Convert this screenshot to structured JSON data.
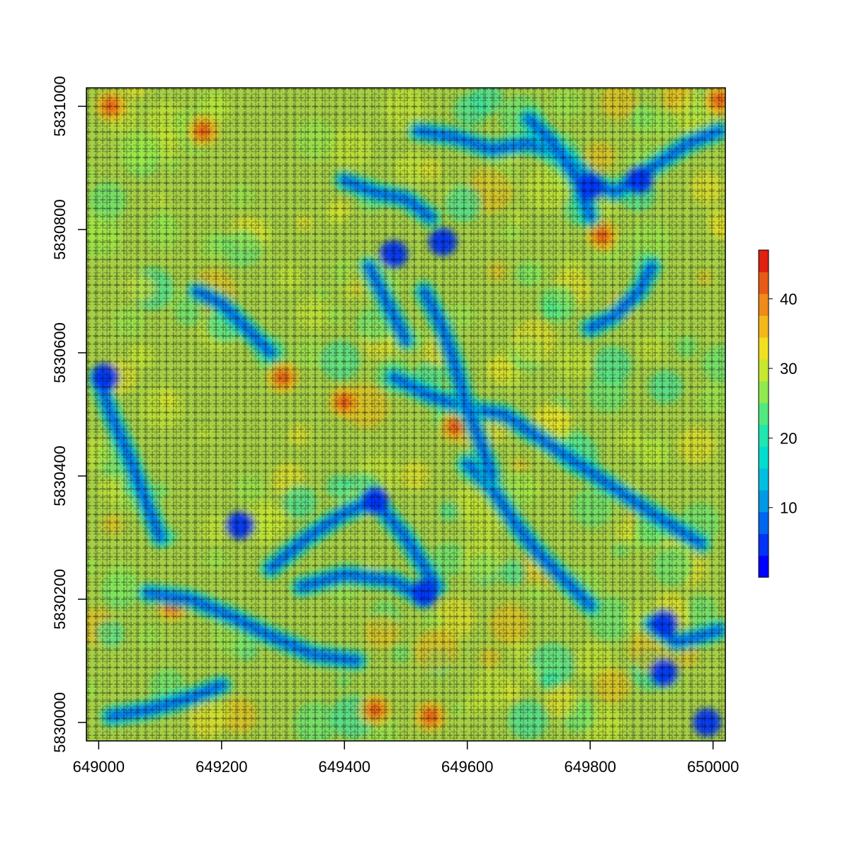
{
  "chart_data": {
    "type": "heatmap",
    "title": "",
    "xlabel": "",
    "ylabel": "",
    "xlim": [
      648980,
      650020
    ],
    "ylim": [
      5829970,
      5831030
    ],
    "x_ticks": [
      649000,
      649200,
      649400,
      649600,
      649800,
      650000
    ],
    "x_tick_labels": [
      "649000",
      "649200",
      "649400",
      "649600",
      "649800",
      "650000"
    ],
    "y_ticks": [
      5830000,
      5830200,
      5830400,
      5830600,
      5830800,
      5831000
    ],
    "y_tick_labels": [
      "5830000",
      "5830200",
      "5830400",
      "5830600",
      "5830800",
      "5831000"
    ],
    "grid": false,
    "overlay": "dense black cross (+) point markers",
    "colorbar": {
      "range": [
        0,
        47
      ],
      "ticks": [
        10,
        20,
        30,
        40
      ],
      "tick_labels": [
        "10",
        "20",
        "30",
        "40"
      ],
      "colors": [
        "#0000ff",
        "#0033f5",
        "#0066ee",
        "#0099e6",
        "#00bfe0",
        "#00ddd0",
        "#20e6b0",
        "#50ea80",
        "#90ea50",
        "#c8e830",
        "#f0e020",
        "#f5b81a",
        "#f08a18",
        "#e85a15",
        "#e02010"
      ],
      "placement": "right"
    },
    "low_value_channels": [
      [
        [
          649000,
          5830560
        ],
        [
          649020,
          5830500
        ],
        [
          649050,
          5830430
        ],
        [
          649080,
          5830350
        ],
        [
          649100,
          5830300
        ]
      ],
      [
        [
          649020,
          5830010
        ],
        [
          649080,
          5830020
        ],
        [
          649150,
          5830040
        ],
        [
          649200,
          5830060
        ]
      ],
      [
        [
          649080,
          5830210
        ],
        [
          649150,
          5830200
        ],
        [
          649220,
          5830170
        ],
        [
          649280,
          5830140
        ],
        [
          649350,
          5830110
        ],
        [
          649420,
          5830100
        ]
      ],
      [
        [
          649280,
          5830250
        ],
        [
          649340,
          5830300
        ],
        [
          649400,
          5830340
        ],
        [
          649450,
          5830360
        ],
        [
          649500,
          5830300
        ],
        [
          649550,
          5830220
        ]
      ],
      [
        [
          649330,
          5830220
        ],
        [
          649400,
          5830240
        ],
        [
          649480,
          5830230
        ],
        [
          649530,
          5830200
        ]
      ],
      [
        [
          649480,
          5830560
        ],
        [
          649540,
          5830530
        ],
        [
          649600,
          5830510
        ],
        [
          649660,
          5830500
        ],
        [
          649720,
          5830460
        ],
        [
          649780,
          5830420
        ],
        [
          649840,
          5830380
        ],
        [
          649900,
          5830340
        ],
        [
          649980,
          5830290
        ]
      ],
      [
        [
          649600,
          5830420
        ],
        [
          649640,
          5830380
        ],
        [
          649680,
          5830320
        ],
        [
          649720,
          5830270
        ],
        [
          649760,
          5830230
        ],
        [
          649800,
          5830190
        ]
      ],
      [
        [
          649530,
          5830700
        ],
        [
          649560,
          5830640
        ],
        [
          649580,
          5830580
        ],
        [
          649600,
          5830510
        ],
        [
          649620,
          5830460
        ],
        [
          649640,
          5830400
        ]
      ],
      [
        [
          649520,
          5830960
        ],
        [
          649580,
          5830950
        ],
        [
          649640,
          5830930
        ],
        [
          649700,
          5830940
        ],
        [
          649760,
          5830920
        ],
        [
          649800,
          5830880
        ],
        [
          649840,
          5830860
        ],
        [
          649900,
          5830900
        ],
        [
          649960,
          5830940
        ],
        [
          650010,
          5830960
        ]
      ],
      [
        [
          649700,
          5830980
        ],
        [
          649740,
          5830940
        ],
        [
          649780,
          5830880
        ],
        [
          649800,
          5830820
        ]
      ],
      [
        [
          649400,
          5830880
        ],
        [
          649450,
          5830860
        ],
        [
          649500,
          5830850
        ],
        [
          649540,
          5830820
        ]
      ],
      [
        [
          649900,
          5830160
        ],
        [
          649940,
          5830130
        ],
        [
          649980,
          5830140
        ],
        [
          650010,
          5830150
        ]
      ],
      [
        [
          649160,
          5830700
        ],
        [
          649200,
          5830680
        ],
        [
          649240,
          5830640
        ],
        [
          649280,
          5830600
        ]
      ],
      [
        [
          649440,
          5830740
        ],
        [
          649460,
          5830700
        ],
        [
          649480,
          5830660
        ],
        [
          649500,
          5830620
        ]
      ],
      [
        [
          649800,
          5830640
        ],
        [
          649840,
          5830660
        ],
        [
          649880,
          5830700
        ],
        [
          649900,
          5830740
        ]
      ]
    ],
    "low_value_spots": [
      [
        649920,
        5830080
      ],
      [
        649920,
        5830160
      ],
      [
        649990,
        5830000
      ],
      [
        649880,
        5830880
      ],
      [
        649800,
        5830870
      ],
      [
        649560,
        5830780
      ],
      [
        649480,
        5830760
      ],
      [
        649450,
        5830360
      ],
      [
        649530,
        5830210
      ],
      [
        649230,
        5830320
      ],
      [
        649010,
        5830560
      ]
    ],
    "high_value_spots": [
      [
        649020,
        5831000
      ],
      [
        649170,
        5830960
      ],
      [
        649820,
        5830790
      ],
      [
        649450,
        5830020
      ],
      [
        649540,
        5830010
      ],
      [
        649580,
        5830480
      ],
      [
        649120,
        5830190
      ],
      [
        650010,
        5831010
      ],
      [
        649300,
        5830560
      ],
      [
        649400,
        5830520
      ]
    ]
  }
}
